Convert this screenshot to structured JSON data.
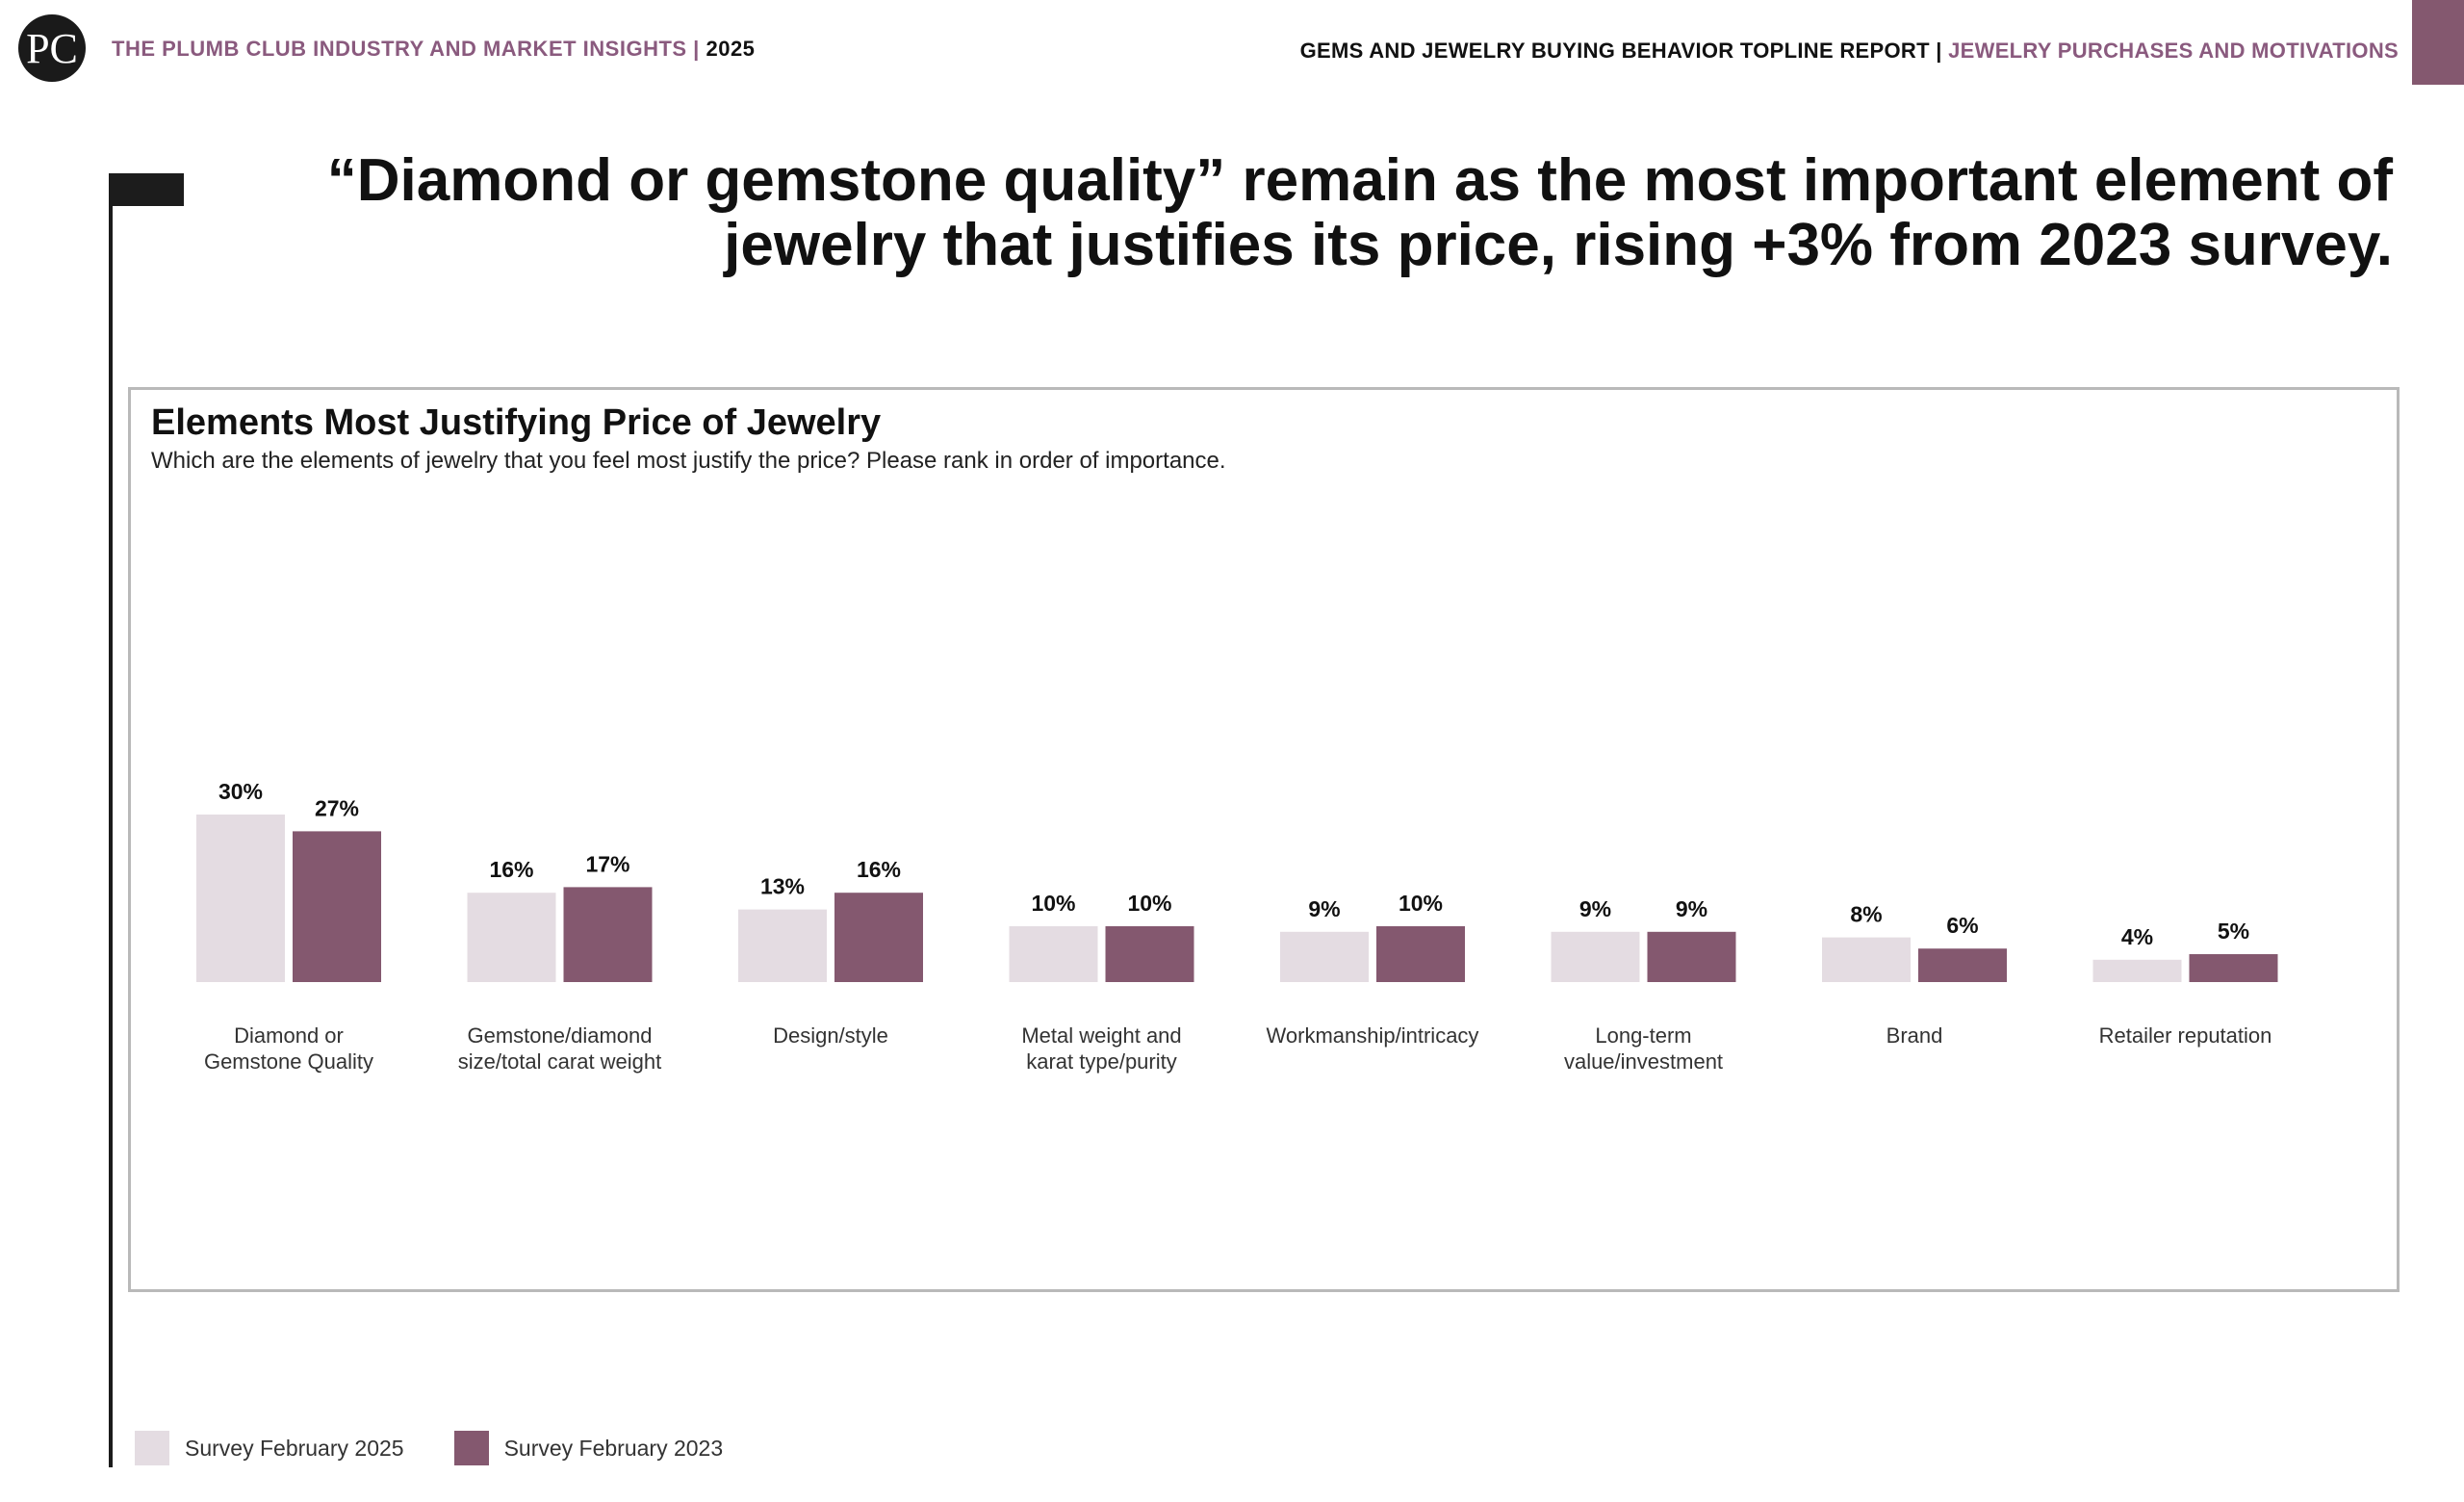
{
  "header": {
    "logo_text": "PC",
    "brand": "THE PLUMB CLUB INDUSTRY AND MARKET INSIGHTS |",
    "year": "2025",
    "report": "GEMS AND JEWELRY BUYING BEHAVIOR TOPLINE REPORT |",
    "section": "JEWELRY PURCHASES AND MOTIVATIONS"
  },
  "headline": "“Diamond or gemstone quality” remain as the most important element of jewelry that justifies its price, rising +3% from 2023 survey.",
  "colors": {
    "series_2025": "#e4dce2",
    "series_2023": "#84586f",
    "accent": "#8a5a7e"
  },
  "chart_data": {
    "type": "bar",
    "title": "Elements Most Justifying Price of Jewelry",
    "subtitle": "Which are the elements of jewelry that you feel most justify the price? Please rank in order of importance.",
    "xlabel": "",
    "ylabel": "",
    "ylim": [
      0,
      30
    ],
    "grid": false,
    "legend_position": "bottom-left",
    "categories": [
      "Diamond or\nGemstone Quality",
      "Gemstone/diamond\nsize/total carat weight",
      "Design/style",
      "Metal weight and\nkarat type/purity",
      "Workmanship/intricacy",
      "Long-term\nvalue/investment",
      "Brand",
      "Retailer reputation"
    ],
    "series": [
      {
        "name": "Survey February 2025",
        "values": [
          30,
          16,
          13,
          10,
          9,
          9,
          8,
          4
        ],
        "labels": [
          "30%",
          "16%",
          "13%",
          "10%",
          "9%",
          "9%",
          "8%",
          "4%"
        ]
      },
      {
        "name": "Survey February 2023",
        "values": [
          27,
          17,
          16,
          10,
          10,
          9,
          6,
          5
        ],
        "labels": [
          "27%",
          "17%",
          "16%",
          "10%",
          "10%",
          "9%",
          "6%",
          "5%"
        ]
      }
    ]
  }
}
